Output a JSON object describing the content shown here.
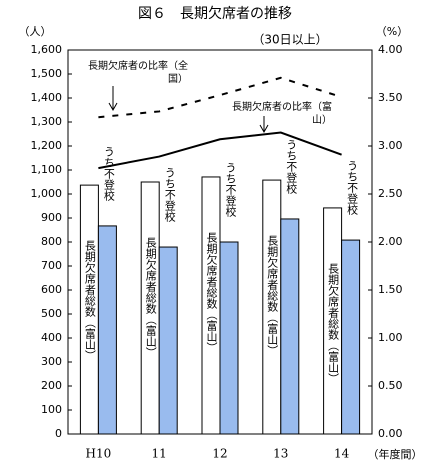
{
  "chart_data": {
    "type": "bar_line",
    "title": "図６　長期欠席者の推移",
    "subtitle": "（30日以上）",
    "y_label": "（人）",
    "y2_label": "（%）",
    "x_label": "（年度間）",
    "categories": [
      "H10",
      "11",
      "12",
      "13",
      "14"
    ],
    "ylim": [
      0,
      1600
    ],
    "yticks": [
      0,
      100,
      200,
      300,
      400,
      500,
      600,
      700,
      800,
      900,
      {
        "value": 1000,
        "label": "1,000"
      },
      {
        "value": 1100,
        "label": "1,100"
      },
      {
        "value": 1200,
        "label": "1,200"
      },
      {
        "value": 1300,
        "label": "1,300"
      },
      {
        "value": 1400,
        "label": "1,400"
      },
      {
        "value": 1500,
        "label": "1,500"
      },
      {
        "value": 1600,
        "label": "1,600"
      }
    ],
    "y2lim": [
      0,
      4
    ],
    "y2ticks": [
      {
        "value": 0,
        "label": "0.00"
      },
      {
        "value": 0.5,
        "label": "0.50"
      },
      {
        "value": 1,
        "label": "1.00"
      },
      {
        "value": 1.5,
        "label": "1.50"
      },
      {
        "value": 2,
        "label": "2.00"
      },
      {
        "value": 2.5,
        "label": "2.50"
      },
      {
        "value": 3,
        "label": "3.00"
      },
      {
        "value": 3.5,
        "label": "3.50"
      },
      {
        "value": 4,
        "label": "4.00"
      }
    ],
    "series": [
      {
        "name": "長期欠席者総数（富山）",
        "kind": "bar",
        "color": "#ffffff",
        "values": [
          1037,
          1050,
          1071,
          1058,
          942
        ]
      },
      {
        "name": "うち不登校",
        "kind": "bar",
        "color": "#99bbee",
        "values": [
          867,
          779,
          800,
          896,
          808
        ]
      },
      {
        "name": "長期欠席者の比率（全国）",
        "kind": "line",
        "dashed": true,
        "axis": "y2",
        "color": "#000000",
        "values": [
          3.3,
          3.36,
          3.53,
          3.71,
          3.51
        ]
      },
      {
        "name": "長期欠席者の比率（富山）",
        "kind": "line",
        "dashed": false,
        "axis": "y2",
        "color": "#000000",
        "values": [
          2.77,
          2.89,
          3.07,
          3.14,
          2.91
        ]
      }
    ]
  }
}
